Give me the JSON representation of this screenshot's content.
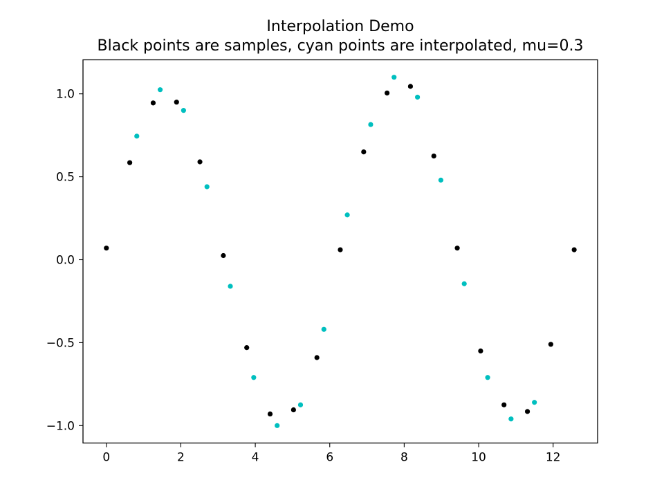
{
  "chart_data": {
    "type": "scatter",
    "title": "Interpolation Demo",
    "subtitle": "Black points are samples, cyan points are interpolated, mu=0.3",
    "xlabel": "",
    "ylabel": "",
    "xlim": [
      -0.628,
      13.195
    ],
    "ylim": [
      -1.105,
      1.205
    ],
    "xticks": [
      0,
      2,
      4,
      6,
      8,
      10,
      12
    ],
    "yticks": [
      -1.0,
      -0.5,
      0.0,
      0.5,
      1.0
    ],
    "xtick_labels": [
      "0",
      "2",
      "4",
      "6",
      "8",
      "10",
      "12"
    ],
    "ytick_labels": [
      "−1.0",
      "−0.5",
      "0.0",
      "0.5",
      "1.0"
    ],
    "grid": false,
    "legend": "none",
    "series": [
      {
        "color": "#000000",
        "x": [
          0.0,
          0.628,
          1.257,
          1.885,
          2.513,
          3.142,
          3.77,
          4.398,
          5.027,
          5.655,
          6.283,
          6.912,
          7.54,
          8.168,
          8.796,
          9.425,
          10.053,
          10.681,
          11.31,
          11.938,
          12.566
        ],
        "y": [
          0.07,
          0.585,
          0.945,
          0.95,
          0.59,
          0.025,
          -0.53,
          -0.93,
          -0.905,
          -0.59,
          0.06,
          0.65,
          1.005,
          1.045,
          0.625,
          0.07,
          -0.55,
          -0.875,
          -0.915,
          -0.51,
          0.06
        ]
      },
      {
        "color": "#00bfbf",
        "x": [
          0.817,
          1.445,
          2.073,
          2.702,
          3.33,
          3.958,
          4.587,
          5.215,
          5.843,
          6.471,
          7.1,
          7.728,
          8.357,
          8.985,
          9.613,
          10.242,
          10.87,
          11.498
        ],
        "y": [
          0.745,
          1.025,
          0.9,
          0.44,
          -0.16,
          -0.71,
          -1.0,
          -0.875,
          -0.42,
          0.27,
          0.815,
          1.1,
          0.98,
          0.48,
          -0.145,
          -0.71,
          -0.96,
          -0.86
        ]
      }
    ]
  }
}
